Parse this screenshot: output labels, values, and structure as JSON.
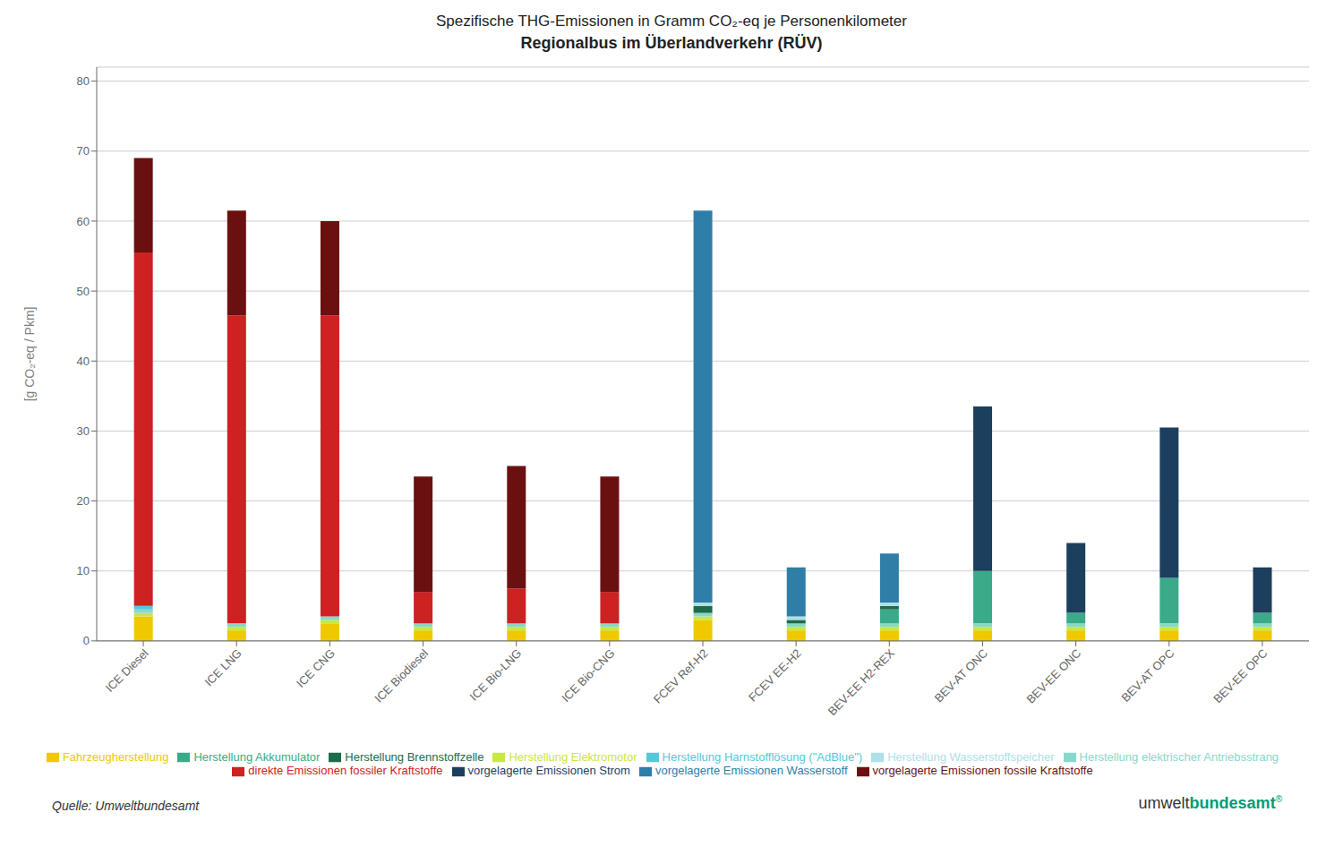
{
  "chart_data": {
    "type": "bar",
    "title": "Spezifische THG-Emissionen in Gramm CO₂-eq je Personenkilometer",
    "subtitle": "Regionalbus im Überlandverkehr (RÜV)",
    "ylabel": "[g CO₂-eq / Pkm]",
    "categories": [
      "ICE Diesel",
      "ICE LNG",
      "ICE CNG",
      "ICE Biodiesel",
      "ICE Bio-LNG",
      "ICE Bio-CNG",
      "FCEV Ref-H2",
      "FCEV EE-H2",
      "BEV-EE H2-REX",
      "BEV-AT ONC",
      "BEV-EE ONC",
      "BEV-AT OPC",
      "BEV-EE OPC"
    ],
    "series": [
      {
        "name": "Fahrzeugherstellung",
        "color": "#f0c800",
        "values": [
          3.5,
          1.5,
          2.5,
          1.5,
          1.5,
          1.5,
          3.0,
          1.5,
          1.5,
          1.5,
          1.5,
          1.5,
          1.5
        ]
      },
      {
        "name": "Herstellung Elektromotor",
        "color": "#c8e840",
        "values": [
          0.5,
          0.5,
          0.5,
          0.5,
          0.5,
          0.5,
          0.5,
          0.5,
          0.5,
          0.5,
          0.5,
          0.5,
          0.5
        ]
      },
      {
        "name": "Herstellung elektrischer Antriebsstrang",
        "color": "#88d8cc",
        "values": [
          0.5,
          0.5,
          0.5,
          0.5,
          0.5,
          0.5,
          0.5,
          0.5,
          0.5,
          0.5,
          0.5,
          0.5,
          0.5
        ]
      },
      {
        "name": "Herstellung Akkumulator",
        "color": "#3aaa88",
        "values": [
          0,
          0,
          0,
          0,
          0,
          0,
          0,
          0,
          2.0,
          7.5,
          1.5,
          6.5,
          1.5
        ]
      },
      {
        "name": "Herstellung Brennstoffzelle",
        "color": "#1e6b4a",
        "values": [
          0,
          0,
          0,
          0,
          0,
          0,
          1.0,
          0.5,
          0.5,
          0,
          0,
          0,
          0
        ]
      },
      {
        "name": "Herstellung Wasserstoffspeicher",
        "color": "#aee0e8",
        "values": [
          0,
          0,
          0,
          0,
          0,
          0,
          0.5,
          0.5,
          0.5,
          0,
          0,
          0,
          0
        ]
      },
      {
        "name": "Herstellung Harnstofflösung (\"AdBlue\")",
        "color": "#55c8d8",
        "values": [
          0.5,
          0,
          0,
          0,
          0,
          0,
          0,
          0,
          0,
          0,
          0,
          0,
          0
        ]
      },
      {
        "name": "direkte Emissionen fossiler Kraftstoffe",
        "color": "#cc2222",
        "values": [
          50.5,
          44.0,
          43.0,
          4.5,
          5.0,
          4.5,
          0,
          0,
          0,
          0,
          0,
          0,
          0
        ]
      },
      {
        "name": "vorgelagerte Emissionen fossile Kraftstoffe",
        "color": "#6b1010",
        "values": [
          13.5,
          15.0,
          13.5,
          16.5,
          17.5,
          16.5,
          0,
          0,
          0,
          0,
          0,
          0,
          0
        ]
      },
      {
        "name": "vorgelagerte Emissionen Wasserstoff",
        "color": "#2e7ea8",
        "values": [
          0,
          0,
          0,
          0,
          0,
          0,
          56.0,
          7.0,
          7.0,
          0,
          0,
          0,
          0
        ]
      },
      {
        "name": "vorgelagerte Emissionen Strom",
        "color": "#1c3f5e",
        "values": [
          0,
          0,
          0,
          0,
          0,
          0,
          0,
          0,
          0,
          23.5,
          10.0,
          21.5,
          6.5
        ]
      }
    ],
    "ylim": [
      0,
      82
    ],
    "yticks": [
      0,
      10,
      20,
      30,
      40,
      50,
      60,
      70,
      80
    ],
    "stacked": true,
    "grid": true,
    "legend": "bottom",
    "annotations": [
      {
        "text": "Quelle: Umweltbundesamt",
        "color": "#333333"
      },
      {
        "text": "umwelt",
        "color": "#333333"
      },
      {
        "text": "bundesamt",
        "color": "#009b77"
      },
      {
        "text": "®",
        "color": "#009b77"
      }
    ]
  }
}
